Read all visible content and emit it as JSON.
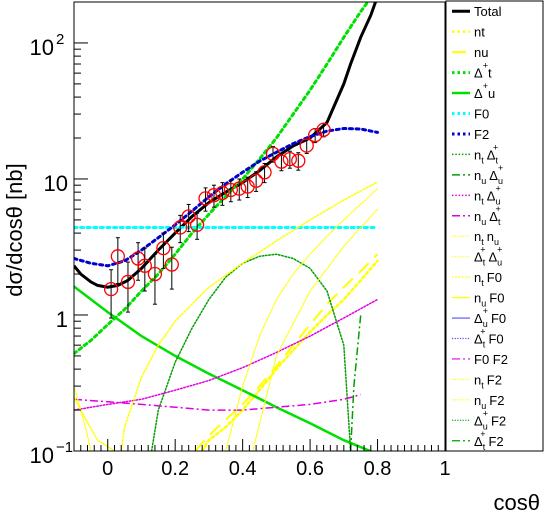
{
  "chart_data": {
    "type": "line",
    "title": "",
    "xlabel": "cosθ",
    "ylabel": "dσ/dcosθ [nb]",
    "xlim": [
      -0.1,
      1.0
    ],
    "ylim": [
      0.1,
      200
    ],
    "y_scale": "log",
    "x_ticks": [
      0,
      0.2,
      0.4,
      0.6,
      0.8,
      1
    ],
    "x_tick_labels": [
      "0",
      "0.2",
      "0.4",
      "0.6",
      "0.8",
      "1"
    ],
    "y_tick_labels": [
      {
        "value": 0.1,
        "base": "10",
        "exp": "−1"
      },
      {
        "value": 1,
        "base": "1",
        "exp": ""
      },
      {
        "value": 10,
        "base": "10",
        "exp": ""
      },
      {
        "value": 100,
        "base": "10",
        "exp": "2"
      }
    ],
    "grid": false,
    "legend_placement": "right",
    "series": [
      {
        "name": "Total",
        "legend_main": "Total",
        "legend_sub": "",
        "legend_sup": "",
        "color": "#000000",
        "style": "solid",
        "width": 3,
        "x": [
          -0.1,
          -0.08,
          -0.05,
          -0.03,
          0,
          0.03,
          0.06,
          0.1,
          0.15,
          0.2,
          0.25,
          0.3,
          0.35,
          0.4,
          0.45,
          0.5,
          0.55,
          0.6,
          0.65,
          0.7,
          0.72,
          0.75,
          0.78,
          0.8
        ],
        "y": [
          2.3,
          2.0,
          1.75,
          1.65,
          1.6,
          1.65,
          1.8,
          2.2,
          3.0,
          4.0,
          5.3,
          6.7,
          8.0,
          9.4,
          11.5,
          14.5,
          17.5,
          20,
          26,
          50,
          70,
          110,
          160,
          220
        ]
      },
      {
        "name": "nt",
        "legend_main": "nt",
        "legend_sub": "",
        "legend_sup": "",
        "color": "#ffff00",
        "style": "dotted",
        "width": 2.5,
        "x": [
          0.28,
          0.3,
          0.35,
          0.4,
          0.45,
          0.5,
          0.55,
          0.6,
          0.65,
          0.7,
          0.75,
          0.8
        ],
        "y": [
          0.1,
          0.12,
          0.15,
          0.2,
          0.28,
          0.4,
          0.55,
          0.75,
          1.0,
          1.3,
          1.8,
          2.5
        ]
      },
      {
        "name": "nu",
        "legend_main": "nu",
        "legend_sub": "",
        "legend_sup": "",
        "color": "#ffff00",
        "style": "longdash",
        "width": 2,
        "x": [
          0.26,
          0.3,
          0.35,
          0.4,
          0.45,
          0.5,
          0.55,
          0.6,
          0.65,
          0.7,
          0.75,
          0.8
        ],
        "y": [
          0.1,
          0.13,
          0.17,
          0.22,
          0.3,
          0.42,
          0.6,
          0.85,
          1.2,
          1.6,
          2.1,
          2.8
        ]
      },
      {
        "name": "Δ+t",
        "legend_main": "Δ",
        "legend_sub": "",
        "legend_sup": "+",
        "legend_tail": "t",
        "color": "#00e000",
        "style": "dotted",
        "width": 3,
        "x": [
          -0.1,
          -0.05,
          0,
          0.05,
          0.1,
          0.15,
          0.2,
          0.25,
          0.3,
          0.35,
          0.4,
          0.45,
          0.5,
          0.55,
          0.6,
          0.65,
          0.7,
          0.75,
          0.8
        ],
        "y": [
          0.52,
          0.65,
          0.85,
          1.1,
          1.5,
          2.0,
          2.8,
          4.0,
          5.5,
          7.5,
          10,
          14,
          20,
          30,
          45,
          70,
          110,
          170,
          250
        ]
      },
      {
        "name": "Δ+u",
        "legend_main": "Δ",
        "legend_sub": "",
        "legend_sup": "+",
        "legend_tail": "u",
        "color": "#00e000",
        "style": "solid",
        "width": 2.5,
        "x": [
          -0.1,
          0,
          0.1,
          0.2,
          0.3,
          0.4,
          0.5,
          0.6,
          0.7,
          0.8
        ],
        "y": [
          1.62,
          1.05,
          0.7,
          0.5,
          0.37,
          0.28,
          0.21,
          0.16,
          0.12,
          0.095
        ]
      },
      {
        "name": "F0",
        "legend_main": "F0",
        "legend_sub": "",
        "legend_sup": "",
        "color": "#00ffff",
        "style": "dotted",
        "width": 3,
        "x": [
          -0.1,
          0.8
        ],
        "y": [
          4.4,
          4.4
        ]
      },
      {
        "name": "F2",
        "legend_main": "F2",
        "legend_sub": "",
        "legend_sup": "",
        "color": "#0000d0",
        "style": "dotted",
        "width": 3,
        "x": [
          -0.1,
          -0.05,
          0,
          0.05,
          0.1,
          0.15,
          0.2,
          0.25,
          0.3,
          0.35,
          0.4,
          0.45,
          0.5,
          0.55,
          0.6,
          0.65,
          0.7,
          0.75,
          0.8
        ],
        "y": [
          2.6,
          2.4,
          2.3,
          2.5,
          3.0,
          3.7,
          4.6,
          5.8,
          7.4,
          9.2,
          11.2,
          13.5,
          15.7,
          18.2,
          20.5,
          22.5,
          23.5,
          23.3,
          22
        ]
      },
      {
        "name": "nt Δ+t",
        "legend_main": "n",
        "legend_sub": "t",
        "legend_sup": "",
        "legend_tail2": "Δ",
        "legend_tail2_sub": "t",
        "legend_tail2_sup": "+",
        "color": "#00a000",
        "style": "dotted",
        "width": 1.5,
        "x": [
          0.13,
          0.15,
          0.2,
          0.25,
          0.3,
          0.35,
          0.4,
          0.45,
          0.5,
          0.55,
          0.6,
          0.65,
          0.7,
          0.72
        ],
        "y": [
          0.1,
          0.2,
          0.45,
          0.8,
          1.3,
          1.9,
          2.4,
          2.7,
          2.8,
          2.6,
          2.2,
          1.5,
          0.6,
          0.1
        ]
      },
      {
        "name": "nu Δ+u",
        "legend_main": "n",
        "legend_sub": "u",
        "legend_sup": "",
        "legend_tail2": "Δ",
        "legend_tail2_sub": "u",
        "legend_tail2_sup": "+",
        "color": "#00a000",
        "style": "dashdot",
        "width": 1.5,
        "x": [
          0.72,
          0.73,
          0.75
        ],
        "y": [
          0.1,
          0.3,
          1.0
        ]
      },
      {
        "name": "nt Δ+u",
        "legend_main": "n",
        "legend_sub": "t",
        "legend_sup": "",
        "legend_tail2": "Δ",
        "legend_tail2_sub": "u",
        "legend_tail2_sup": "+",
        "color": "#e000e0",
        "style": "dotted",
        "width": 1.5,
        "x": [
          -0.1,
          0,
          0.1,
          0.2,
          0.3,
          0.4,
          0.5,
          0.6,
          0.7,
          0.8
        ],
        "y": [
          0.2,
          0.22,
          0.24,
          0.28,
          0.33,
          0.41,
          0.53,
          0.7,
          0.95,
          1.3
        ]
      },
      {
        "name": "nu Δ+t",
        "legend_main": "n",
        "legend_sub": "u",
        "legend_sup": "",
        "legend_tail2": "Δ",
        "legend_tail2_sub": "t",
        "legend_tail2_sup": "+",
        "color": "#e000e0",
        "style": "dashdot",
        "width": 1.5,
        "x": [
          -0.1,
          0,
          0.1,
          0.2,
          0.3,
          0.4,
          0.5,
          0.6,
          0.7,
          0.75
        ],
        "y": [
          0.24,
          0.23,
          0.22,
          0.21,
          0.2,
          0.2,
          0.21,
          0.22,
          0.24,
          0.26
        ]
      },
      {
        "name": "nt nu",
        "legend_main": "n",
        "legend_sub": "t",
        "legend_sup": "",
        "legend_tail2": "n",
        "legend_tail2_sub": "u",
        "legend_tail2_sup": "",
        "color": "#ffff00",
        "style": "dotted",
        "width": 1.2,
        "x": [
          0.35,
          0.4,
          0.45,
          0.5,
          0.55,
          0.6,
          0.65,
          0.7,
          0.75,
          0.8
        ],
        "y": [
          0.1,
          0.3,
          0.7,
          1.3,
          2.0,
          2.8,
          3.8,
          5.0,
          6.5,
          8.5
        ]
      },
      {
        "name": "Δ+t Δ+u",
        "legend_main": "Δ",
        "legend_sub": "t",
        "legend_sup": "+",
        "legend_tail2": "Δ",
        "legend_tail2_sub": "u",
        "legend_tail2_sup": "+",
        "color": "#ffff00",
        "style": "dotted",
        "width": 1.2,
        "x": [
          0.43,
          0.5,
          0.6,
          0.7,
          0.8
        ],
        "y": [
          0.1,
          0.5,
          1.5,
          3.2,
          6.0
        ]
      },
      {
        "name": "nt F0",
        "legend_main": "n",
        "legend_sub": "t",
        "legend_sup": "",
        "legend_tail2": "F0",
        "legend_tail2_sub": "",
        "legend_tail2_sup": "",
        "color": "#ffff00",
        "style": "dotted",
        "width": 1.5,
        "x": [
          0.04,
          0.05,
          0.1,
          0.15,
          0.2,
          0.3,
          0.4,
          0.5,
          0.6,
          0.7,
          0.8
        ],
        "y": [
          0.1,
          0.15,
          0.35,
          0.6,
          0.9,
          1.6,
          2.4,
          3.5,
          5.0,
          7.0,
          9.5
        ]
      },
      {
        "name": "nu F0",
        "legend_main": "n",
        "legend_sub": "u",
        "legend_sup": "",
        "legend_tail2": "F0",
        "legend_tail2_sub": "",
        "legend_tail2_sup": "",
        "color": "#ffff00",
        "style": "solid",
        "width": 1.2,
        "x": [
          -0.1,
          -0.07,
          -0.03,
          0.02
        ],
        "y": [
          0.25,
          0.18,
          0.12,
          0.1
        ]
      },
      {
        "name": "Δ+u F0",
        "legend_main": "Δ",
        "legend_sub": "u",
        "legend_sup": "+",
        "legend_tail2": "F0",
        "legend_tail2_sub": "",
        "legend_tail2_sup": "",
        "color": "#5050ff",
        "style": "solid",
        "width": 1.2,
        "x": [],
        "y": []
      },
      {
        "name": "Δ+t F0",
        "legend_main": "Δ",
        "legend_sub": "t",
        "legend_sup": "+",
        "legend_tail2": "F0",
        "legend_tail2_sub": "",
        "legend_tail2_sup": "",
        "color": "#5050ff",
        "style": "dotted",
        "width": 1.2,
        "x": [],
        "y": []
      },
      {
        "name": "F0 F2",
        "legend_main": "F0 F2",
        "legend_sub": "",
        "legend_sup": "",
        "color": "#e000e0",
        "style": "dashdot",
        "width": 1.2,
        "x": [],
        "y": []
      },
      {
        "name": "nt F2",
        "legend_main": "n",
        "legend_sub": "t",
        "legend_sup": "",
        "legend_tail2": "F2",
        "legend_tail2_sub": "",
        "legend_tail2_sup": "",
        "color": "#ffff00",
        "style": "dotted",
        "width": 1.2,
        "x": [],
        "y": []
      },
      {
        "name": "nu F2",
        "legend_main": "n",
        "legend_sub": "u",
        "legend_sup": "",
        "legend_tail2": "F2",
        "legend_tail2_sub": "",
        "legend_tail2_sup": "",
        "color": "#ffff00",
        "style": "dotted",
        "width": 1.2,
        "x": [
          -0.1,
          -0.08,
          -0.06,
          -0.05
        ],
        "y": [
          0.3,
          0.2,
          0.13,
          0.1
        ]
      },
      {
        "name": "Δ+u F2",
        "legend_main": "Δ",
        "legend_sub": "u",
        "legend_sup": "+",
        "legend_tail2": "F2",
        "legend_tail2_sub": "",
        "legend_tail2_sup": "",
        "color": "#00a000",
        "style": "dotted",
        "width": 1.2,
        "x": [],
        "y": []
      },
      {
        "name": "Δ+t F2",
        "legend_main": "Δ",
        "legend_sub": "t",
        "legend_sup": "+",
        "legend_tail2": "F2",
        "legend_tail2_sub": "",
        "legend_tail2_sup": "",
        "color": "#00a000",
        "style": "dashdot",
        "width": 1.2,
        "x": [],
        "y": []
      }
    ],
    "data_points": {
      "color": "#ff0000",
      "marker": "open-circle",
      "points": [
        {
          "x": 0.01,
          "y": 1.55,
          "err": 0.6
        },
        {
          "x": 0.03,
          "y": 2.7,
          "err": 1.0
        },
        {
          "x": 0.06,
          "y": 1.75,
          "err": 0.7
        },
        {
          "x": 0.09,
          "y": 2.6,
          "err": 0.8
        },
        {
          "x": 0.11,
          "y": 2.3,
          "err": 0.8
        },
        {
          "x": 0.14,
          "y": 2.0,
          "err": 0.8
        },
        {
          "x": 0.165,
          "y": 3.1,
          "err": 0.9
        },
        {
          "x": 0.19,
          "y": 2.35,
          "err": 0.8
        },
        {
          "x": 0.215,
          "y": 4.4,
          "err": 1.0
        },
        {
          "x": 0.24,
          "y": 5.3,
          "err": 1.2
        },
        {
          "x": 0.265,
          "y": 4.6,
          "err": 1.0
        },
        {
          "x": 0.29,
          "y": 7.2,
          "err": 1.4
        },
        {
          "x": 0.315,
          "y": 7.6,
          "err": 1.4
        },
        {
          "x": 0.34,
          "y": 7.9,
          "err": 1.5
        },
        {
          "x": 0.365,
          "y": 8.3,
          "err": 1.5
        },
        {
          "x": 0.39,
          "y": 8.5,
          "err": 1.5
        },
        {
          "x": 0.415,
          "y": 8.8,
          "err": 1.5
        },
        {
          "x": 0.44,
          "y": 9.7,
          "err": 1.6
        },
        {
          "x": 0.465,
          "y": 11.2,
          "err": 1.8
        },
        {
          "x": 0.49,
          "y": 15.3,
          "err": 2.0
        },
        {
          "x": 0.515,
          "y": 13.4,
          "err": 1.9
        },
        {
          "x": 0.54,
          "y": 14.0,
          "err": 2.0
        },
        {
          "x": 0.565,
          "y": 13.6,
          "err": 2.0
        },
        {
          "x": 0.59,
          "y": 17.6,
          "err": 2.2
        },
        {
          "x": 0.615,
          "y": 21.0,
          "err": 2.5
        },
        {
          "x": 0.64,
          "y": 23.0,
          "err": 2.6
        }
      ]
    }
  }
}
